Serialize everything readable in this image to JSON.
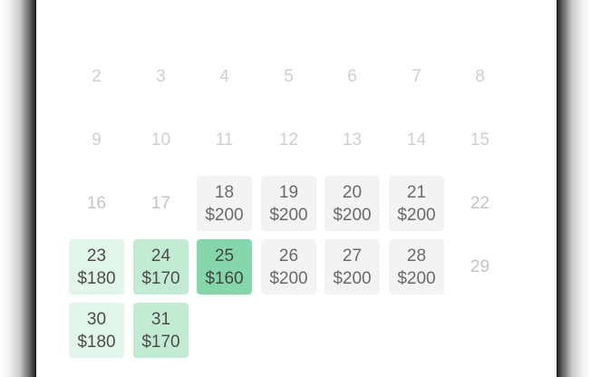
{
  "calendar": {
    "week_1": [
      "2",
      "3",
      "4",
      "5",
      "6",
      "7",
      "8"
    ],
    "week_2": [
      "9",
      "10",
      "11",
      "12",
      "13",
      "14",
      "15"
    ],
    "week_3": [
      {
        "day": "16",
        "price": ""
      },
      {
        "day": "17",
        "price": ""
      },
      {
        "day": "18",
        "price": "$200"
      },
      {
        "day": "19",
        "price": "$200"
      },
      {
        "day": "20",
        "price": "$200"
      },
      {
        "day": "21",
        "price": "$200"
      },
      {
        "day": "22",
        "price": ""
      }
    ],
    "week_4": [
      {
        "day": "23",
        "price": "$180"
      },
      {
        "day": "24",
        "price": "$170"
      },
      {
        "day": "25",
        "price": "$160"
      },
      {
        "day": "26",
        "price": "$200"
      },
      {
        "day": "27",
        "price": "$200"
      },
      {
        "day": "28",
        "price": "$200"
      },
      {
        "day": "29",
        "price": ""
      }
    ],
    "week_5": [
      {
        "day": "30",
        "price": "$180"
      },
      {
        "day": "31",
        "price": "$170"
      }
    ]
  },
  "colors": {
    "price_default_bg": "#f3f3f3",
    "price_low_1_bg": "#e1f5ea",
    "price_low_2_bg": "#c2ebd4",
    "price_low_3_bg": "#84d7ab",
    "disabled_text": "#cfcfcf"
  }
}
